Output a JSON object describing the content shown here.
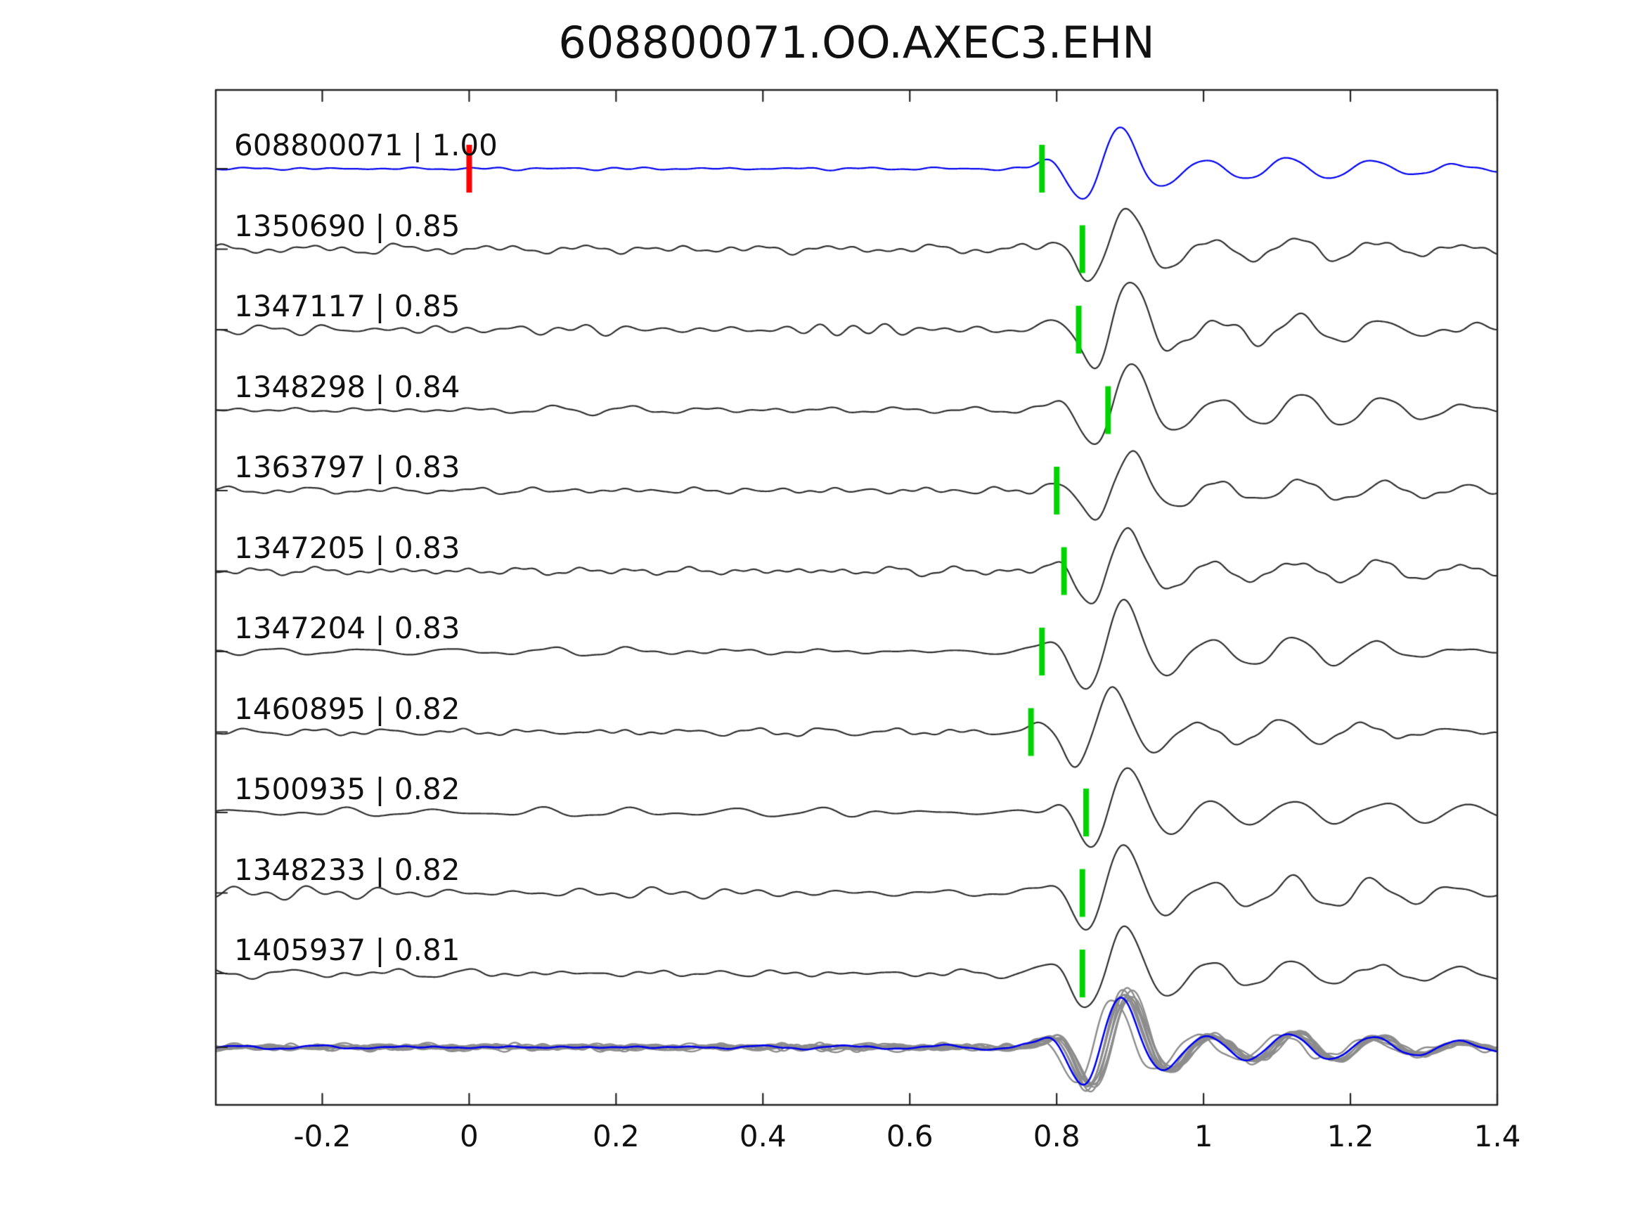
{
  "title": "608800071.OO.AXEC3.EHN",
  "chart_data": {
    "type": "line",
    "title": "608800071.OO.AXEC3.EHN",
    "description": "Template-matching waveform panel: reference seismic trace (blue) and ten matched detection traces (black), each labeled 'id | correlation'. Green bars mark pick times, a red bar marks the reference zero time, and the bottom row overlays all traces (gray) with the reference (blue).",
    "xlim": [
      -0.345,
      1.4
    ],
    "x_ticks": [
      "-0.2",
      "0",
      "0.2",
      "0.4",
      "0.6",
      "0.8",
      "1",
      "1.2",
      "1.4"
    ],
    "x_tick_values": [
      -0.2,
      0,
      0.2,
      0.4,
      0.6,
      0.8,
      1,
      1.2,
      1.4
    ],
    "reference_zero_mark_x": 0,
    "colors": {
      "reference_trace": "#0000ee",
      "detection_trace": "#2f2f2f",
      "pick_mark": "#00d400",
      "reference_mark": "#ff0000",
      "overlay_trace": "#8c8c8c",
      "axes": "#222222"
    },
    "traces": [
      {
        "id": "608800071",
        "cc": "1.00",
        "label": "608800071 | 1.00",
        "pick_x": 0.78,
        "peak_x": 0.885,
        "is_reference": true
      },
      {
        "id": "1350690",
        "cc": "0.85",
        "label": "1350690 | 0.85",
        "pick_x": 0.835,
        "peak_x": 0.895,
        "is_reference": false
      },
      {
        "id": "1347117",
        "cc": "0.85",
        "label": "1347117 | 0.85",
        "pick_x": 0.83,
        "peak_x": 0.9,
        "is_reference": false
      },
      {
        "id": "1348298",
        "cc": "0.84",
        "label": "1348298 | 0.84",
        "pick_x": 0.87,
        "peak_x": 0.9,
        "is_reference": false
      },
      {
        "id": "1363797",
        "cc": "0.83",
        "label": "1363797 | 0.83",
        "pick_x": 0.8,
        "peak_x": 0.9,
        "is_reference": false
      },
      {
        "id": "1347205",
        "cc": "0.83",
        "label": "1347205 | 0.83",
        "pick_x": 0.81,
        "peak_x": 0.895,
        "is_reference": false
      },
      {
        "id": "1347204",
        "cc": "0.83",
        "label": "1347204 | 0.83",
        "pick_x": 0.78,
        "peak_x": 0.89,
        "is_reference": false
      },
      {
        "id": "1460895",
        "cc": "0.82",
        "label": "1460895 | 0.82",
        "pick_x": 0.765,
        "peak_x": 0.875,
        "is_reference": false
      },
      {
        "id": "1500935",
        "cc": "0.82",
        "label": "1500935 | 0.82",
        "pick_x": 0.84,
        "peak_x": 0.895,
        "is_reference": false
      },
      {
        "id": "1348233",
        "cc": "0.82",
        "label": "1348233 | 0.82",
        "pick_x": 0.835,
        "peak_x": 0.89,
        "is_reference": false
      },
      {
        "id": "1405937",
        "cc": "0.81",
        "label": "1405937 | 0.81",
        "pick_x": 0.835,
        "peak_x": 0.89,
        "is_reference": false
      }
    ],
    "overlay_row": {
      "has_reference_overlay": true,
      "n_traces": 11
    }
  }
}
